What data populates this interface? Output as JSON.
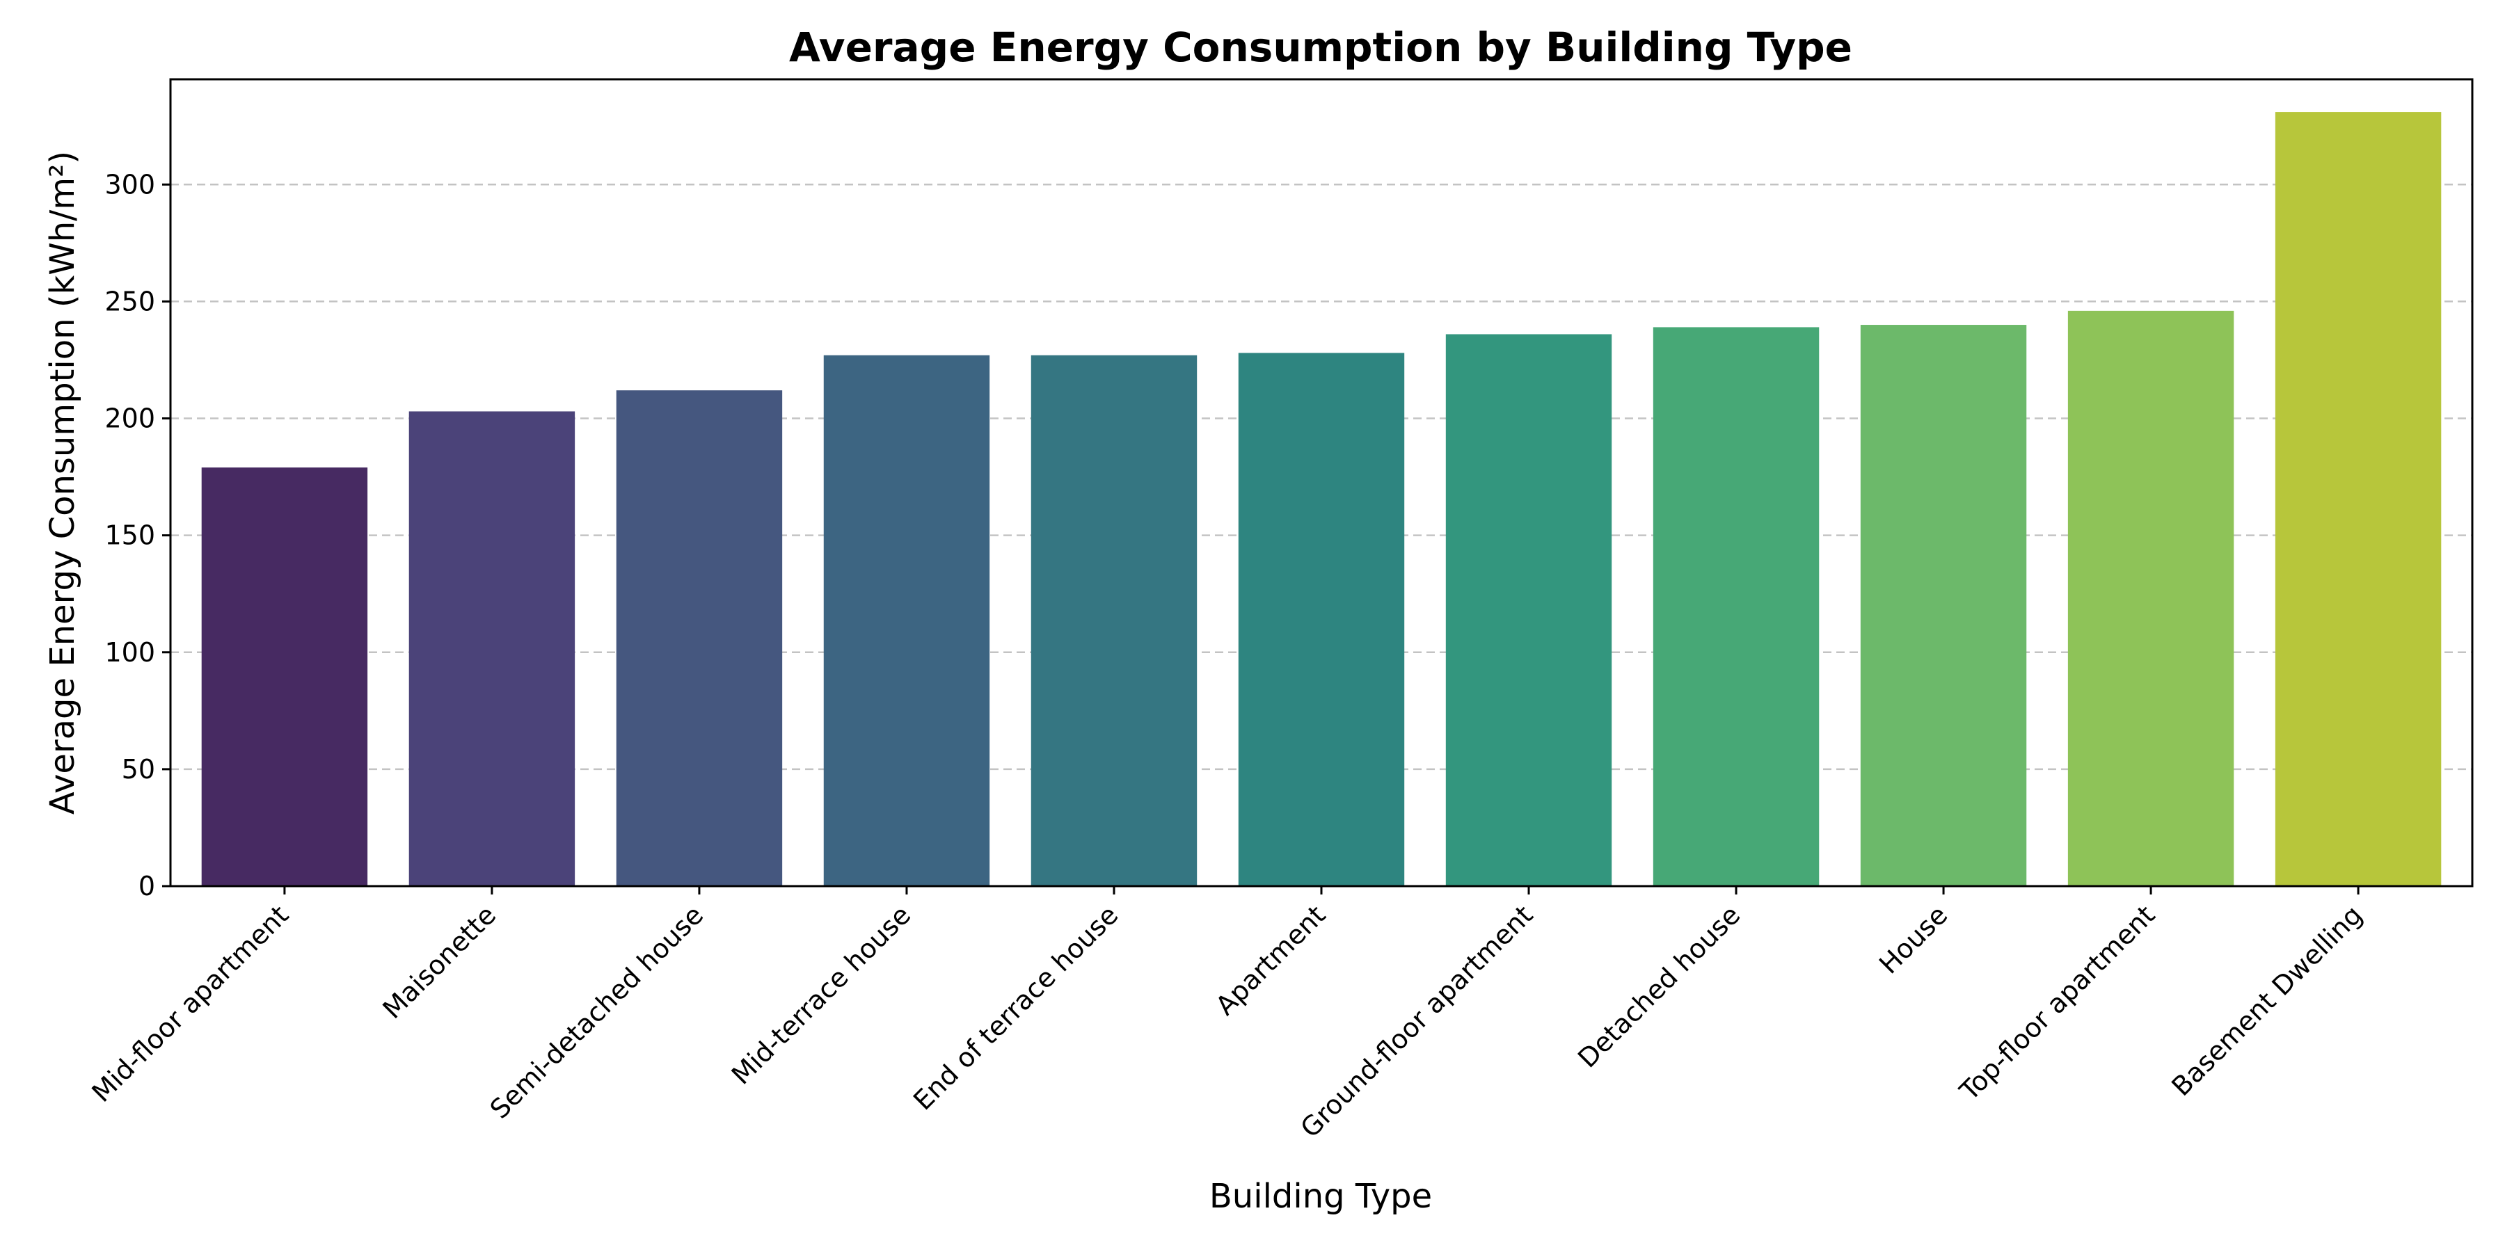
{
  "chart_data": {
    "type": "bar",
    "title": "Average Energy Consumption by Building Type",
    "xlabel": "Building Type",
    "ylabel": "Average Energy Consumption (kWh/m²)",
    "categories": [
      "Mid-floor apartment",
      "Maisonette",
      "Semi-detached house",
      "Mid-terrace house",
      "End of terrace house",
      "Apartment",
      "Ground-floor apartment",
      "Detached house",
      "House",
      "Top-floor apartment",
      "Basement Dwelling"
    ],
    "values": [
      179,
      203,
      212,
      227,
      227,
      228,
      236,
      239,
      240,
      246,
      331
    ],
    "colors": [
      "#472a62",
      "#4b4379",
      "#45577f",
      "#3d6582",
      "#357682",
      "#2e8580",
      "#33967e",
      "#47a876",
      "#6cb96a",
      "#8ec358",
      "#b7c63b"
    ],
    "ylim": [
      0,
      345
    ],
    "yticks": [
      0,
      50,
      100,
      150,
      200,
      250,
      300
    ],
    "grid": "y-dashed",
    "legend": "none"
  }
}
